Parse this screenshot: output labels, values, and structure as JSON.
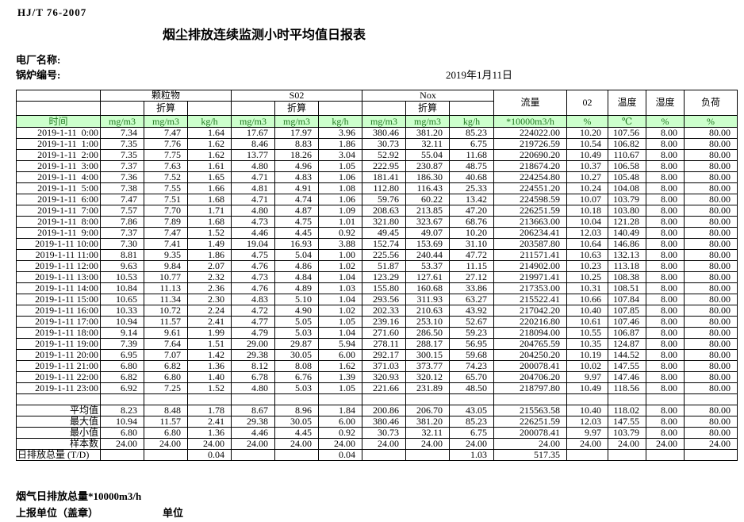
{
  "header": {
    "standard_no": "HJ/T  76-2007",
    "title": "烟尘排放连续监测小时平均值日报表",
    "plant_label": "电厂名称:",
    "boiler_label": "锅炉编号:",
    "date": "2019年1月11日"
  },
  "table": {
    "time_label": "时间",
    "converted_label": "折算",
    "group_pm": "颗粒物",
    "group_so2": "S02",
    "group_nox": "Nox",
    "col_flow": "流量",
    "col_o2": "02",
    "col_temp": "温度",
    "col_humidity": "湿度",
    "col_load": "负荷",
    "units": [
      "mg/m3",
      "mg/m3",
      "kg/h",
      "mg/m3",
      "mg/m3",
      "kg/h",
      "mg/m3",
      "mg/m3",
      "kg/h",
      "*10000m3/h",
      "%",
      "℃",
      "%",
      "%"
    ],
    "rows": [
      [
        "2019-1-11  0:00",
        "7.34",
        "7.47",
        "1.64",
        "17.67",
        "17.97",
        "3.96",
        "380.46",
        "381.20",
        "85.23",
        "224022.00",
        "10.20",
        "107.56",
        "8.00",
        "80.00"
      ],
      [
        "2019-1-11  1:00",
        "7.35",
        "7.76",
        "1.62",
        "8.46",
        "8.83",
        "1.86",
        "30.73",
        "32.11",
        "6.75",
        "219726.59",
        "10.54",
        "106.82",
        "8.00",
        "80.00"
      ],
      [
        "2019-1-11  2:00",
        "7.35",
        "7.75",
        "1.62",
        "13.77",
        "18.26",
        "3.04",
        "52.92",
        "55.04",
        "11.68",
        "220690.20",
        "10.49",
        "110.67",
        "8.00",
        "80.00"
      ],
      [
        "2019-1-11  3:00",
        "7.37",
        "7.63",
        "1.61",
        "4.80",
        "4.96",
        "1.05",
        "222.95",
        "230.87",
        "48.75",
        "218674.20",
        "10.37",
        "106.58",
        "8.00",
        "80.00"
      ],
      [
        "2019-1-11  4:00",
        "7.36",
        "7.52",
        "1.65",
        "4.71",
        "4.83",
        "1.06",
        "181.41",
        "186.30",
        "40.68",
        "224254.80",
        "10.27",
        "105.48",
        "8.00",
        "80.00"
      ],
      [
        "2019-1-11  5:00",
        "7.38",
        "7.55",
        "1.66",
        "4.81",
        "4.91",
        "1.08",
        "112.80",
        "116.43",
        "25.33",
        "224551.20",
        "10.24",
        "104.08",
        "8.00",
        "80.00"
      ],
      [
        "2019-1-11  6:00",
        "7.47",
        "7.51",
        "1.68",
        "4.71",
        "4.74",
        "1.06",
        "59.76",
        "60.22",
        "13.42",
        "224598.59",
        "10.07",
        "103.79",
        "8.00",
        "80.00"
      ],
      [
        "2019-1-11  7:00",
        "7.57",
        "7.70",
        "1.71",
        "4.80",
        "4.87",
        "1.09",
        "208.63",
        "213.85",
        "47.20",
        "226251.59",
        "10.18",
        "103.80",
        "8.00",
        "80.00"
      ],
      [
        "2019-1-11  8:00",
        "7.86",
        "7.89",
        "1.68",
        "4.73",
        "4.75",
        "1.01",
        "321.80",
        "323.67",
        "68.76",
        "213663.00",
        "10.04",
        "121.28",
        "8.00",
        "80.00"
      ],
      [
        "2019-1-11  9:00",
        "7.37",
        "7.47",
        "1.52",
        "4.46",
        "4.45",
        "0.92",
        "49.45",
        "49.07",
        "10.20",
        "206234.41",
        "12.03",
        "140.49",
        "8.00",
        "80.00"
      ],
      [
        "2019-1-11 10:00",
        "7.30",
        "7.41",
        "1.49",
        "19.04",
        "16.93",
        "3.88",
        "152.74",
        "153.69",
        "31.10",
        "203587.80",
        "10.64",
        "146.86",
        "8.00",
        "80.00"
      ],
      [
        "2019-1-11 11:00",
        "8.81",
        "9.35",
        "1.86",
        "4.75",
        "5.04",
        "1.00",
        "225.56",
        "240.44",
        "47.72",
        "211571.41",
        "10.63",
        "132.13",
        "8.00",
        "80.00"
      ],
      [
        "2019-1-11 12:00",
        "9.63",
        "9.84",
        "2.07",
        "4.76",
        "4.86",
        "1.02",
        "51.87",
        "53.37",
        "11.15",
        "214902.00",
        "10.23",
        "113.18",
        "8.00",
        "80.00"
      ],
      [
        "2019-1-11 13:00",
        "10.53",
        "10.77",
        "2.32",
        "4.73",
        "4.84",
        "1.04",
        "123.29",
        "127.61",
        "27.12",
        "219971.41",
        "10.25",
        "108.38",
        "8.00",
        "80.00"
      ],
      [
        "2019-1-11 14:00",
        "10.84",
        "11.13",
        "2.36",
        "4.76",
        "4.89",
        "1.03",
        "155.80",
        "160.68",
        "33.86",
        "217353.00",
        "10.31",
        "108.51",
        "8.00",
        "80.00"
      ],
      [
        "2019-1-11 15:00",
        "10.65",
        "11.34",
        "2.30",
        "4.83",
        "5.10",
        "1.04",
        "293.56",
        "311.93",
        "63.27",
        "215522.41",
        "10.66",
        "107.84",
        "8.00",
        "80.00"
      ],
      [
        "2019-1-11 16:00",
        "10.33",
        "10.72",
        "2.24",
        "4.72",
        "4.90",
        "1.02",
        "202.33",
        "210.63",
        "43.92",
        "217042.20",
        "10.40",
        "107.85",
        "8.00",
        "80.00"
      ],
      [
        "2019-1-11 17:00",
        "10.94",
        "11.57",
        "2.41",
        "4.77",
        "5.05",
        "1.05",
        "239.16",
        "253.10",
        "52.67",
        "220216.80",
        "10.61",
        "107.46",
        "8.00",
        "80.00"
      ],
      [
        "2019-1-11 18:00",
        "9.14",
        "9.61",
        "1.99",
        "4.79",
        "5.03",
        "1.04",
        "271.60",
        "286.50",
        "59.23",
        "218094.00",
        "10.55",
        "106.87",
        "8.00",
        "80.00"
      ],
      [
        "2019-1-11 19:00",
        "7.39",
        "7.64",
        "1.51",
        "29.00",
        "29.87",
        "5.94",
        "278.11",
        "288.17",
        "56.95",
        "204765.59",
        "10.35",
        "124.87",
        "8.00",
        "80.00"
      ],
      [
        "2019-1-11 20:00",
        "6.95",
        "7.07",
        "1.42",
        "29.38",
        "30.05",
        "6.00",
        "292.17",
        "300.15",
        "59.68",
        "204250.20",
        "10.19",
        "144.52",
        "8.00",
        "80.00"
      ],
      [
        "2019-1-11 21:00",
        "6.80",
        "6.82",
        "1.36",
        "8.12",
        "8.08",
        "1.62",
        "371.03",
        "373.77",
        "74.23",
        "200078.41",
        "10.02",
        "147.55",
        "8.00",
        "80.00"
      ],
      [
        "2019-1-11 22:00",
        "6.82",
        "6.80",
        "1.40",
        "6.78",
        "6.76",
        "1.39",
        "320.93",
        "320.12",
        "65.70",
        "204706.20",
        "9.97",
        "147.46",
        "8.00",
        "80.00"
      ],
      [
        "2019-1-11 23:00",
        "6.92",
        "7.25",
        "1.52",
        "4.80",
        "5.03",
        "1.05",
        "221.66",
        "231.89",
        "48.50",
        "218797.80",
        "10.49",
        "118.56",
        "8.00",
        "80.00"
      ]
    ],
    "summary_rows": [
      {
        "label": "平均值",
        "align": "right",
        "values": [
          "8.23",
          "8.48",
          "1.78",
          "8.67",
          "8.96",
          "1.84",
          "200.86",
          "206.70",
          "43.05",
          "215563.58",
          "10.40",
          "118.02",
          "8.00",
          "80.00"
        ]
      },
      {
        "label": "最大值",
        "align": "right",
        "values": [
          "10.94",
          "11.57",
          "2.41",
          "29.38",
          "30.05",
          "6.00",
          "380.46",
          "381.20",
          "85.23",
          "226251.59",
          "12.03",
          "147.55",
          "8.00",
          "80.00"
        ]
      },
      {
        "label": "最小值",
        "align": "right",
        "values": [
          "6.80",
          "6.80",
          "1.36",
          "4.46",
          "4.45",
          "0.92",
          "30.73",
          "32.11",
          "6.75",
          "200078.41",
          "9.97",
          "103.79",
          "8.00",
          "80.00"
        ]
      },
      {
        "label": "样本数",
        "align": "right",
        "values": [
          "24.00",
          "24.00",
          "24.00",
          "24.00",
          "24.00",
          "24.00",
          "24.00",
          "24.00",
          "24.00",
          "24.00",
          "24.00",
          "24.00",
          "24.00",
          "24.00"
        ]
      },
      {
        "label": "日排放总量 (T/D)",
        "align": "left",
        "values": [
          "",
          "",
          "0.04",
          "",
          "",
          "0.04",
          "",
          "",
          "1.03",
          "517.35",
          "",
          "",
          "",
          ""
        ]
      }
    ]
  },
  "footer": {
    "flue_gas_total_label": "烟气日排放总量*10000m3/h",
    "report_unit_label": "上报单位（盖章）",
    "unit_label": "单位"
  },
  "colors": {
    "units_row_bg": "#ccffcc",
    "units_row_text": "#217a21",
    "border": "#000000"
  }
}
